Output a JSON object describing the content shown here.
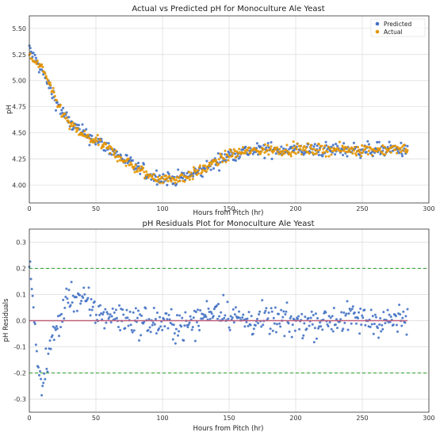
{
  "chart_data": [
    {
      "type": "scatter",
      "title": "Actual vs Predicted pH for Monoculture Ale Yeast",
      "xlabel": "Hours from Pitch (hr)",
      "ylabel": "pH",
      "xlim": [
        0,
        300
      ],
      "ylim": [
        3.83,
        5.62
      ],
      "xticks": [
        0,
        50,
        100,
        150,
        200,
        250,
        300
      ],
      "yticks": [
        4.0,
        4.25,
        4.5,
        4.75,
        5.0,
        5.25,
        5.5
      ],
      "grid": true,
      "legend_position": "top-right",
      "colors": {
        "Predicted": "#4472c4",
        "Actual": "#e69500"
      },
      "series": [
        {
          "name": "Predicted",
          "x": [
            0,
            10,
            20,
            30,
            40,
            50,
            60,
            70,
            80,
            90,
            100,
            110,
            120,
            130,
            140,
            150,
            160,
            170,
            180,
            190,
            200,
            210,
            220,
            230,
            240,
            250,
            260,
            270,
            280,
            284
          ],
          "y": [
            5.3,
            5.08,
            4.8,
            4.6,
            4.5,
            4.43,
            4.35,
            4.26,
            4.17,
            4.1,
            4.07,
            4.06,
            4.09,
            4.14,
            4.22,
            4.29,
            4.32,
            4.33,
            4.34,
            4.34,
            4.34,
            4.34,
            4.34,
            4.34,
            4.34,
            4.34,
            4.34,
            4.34,
            4.34,
            4.34
          ]
        },
        {
          "name": "Actual",
          "x": [
            0,
            10,
            20,
            30,
            40,
            50,
            60,
            70,
            80,
            90,
            100,
            110,
            120,
            130,
            140,
            150,
            160,
            170,
            180,
            190,
            200,
            210,
            220,
            230,
            240,
            250,
            260,
            270,
            280,
            284
          ],
          "y": [
            5.22,
            5.12,
            4.8,
            4.58,
            4.48,
            4.42,
            4.34,
            4.25,
            4.16,
            4.09,
            4.06,
            4.06,
            4.09,
            4.15,
            4.22,
            4.29,
            4.32,
            4.33,
            4.34,
            4.34,
            4.34,
            4.34,
            4.34,
            4.34,
            4.34,
            4.34,
            4.34,
            4.34,
            4.34,
            4.34
          ]
        }
      ]
    },
    {
      "type": "scatter",
      "title": "pH Residuals Plot for Monoculture Ale Yeast",
      "xlabel": "Hours from Pitch (hr)",
      "ylabel": "pH Residuals",
      "xlim": [
        0,
        300
      ],
      "ylim": [
        -0.35,
        0.35
      ],
      "xticks": [
        0,
        50,
        100,
        150,
        200,
        250,
        300
      ],
      "yticks": [
        -0.3,
        -0.2,
        -0.1,
        0.0,
        0.1,
        0.2,
        0.3
      ],
      "grid": true,
      "reference_lines": [
        {
          "y": 0.2,
          "style": "dashed",
          "color": "#2ca02c"
        },
        {
          "y": -0.2,
          "style": "dashed",
          "color": "#2ca02c"
        },
        {
          "y": 0.0,
          "style": "solid",
          "color": "#c0607a"
        }
      ],
      "series": [
        {
          "name": "",
          "x": [
            0,
            1,
            3,
            5,
            8,
            10,
            12,
            15,
            20,
            30,
            40,
            50,
            60,
            80,
            100,
            120,
            140,
            160,
            180,
            200,
            220,
            240,
            260,
            280,
            284
          ],
          "y": [
            0.26,
            0.15,
            0.05,
            -0.08,
            -0.22,
            -0.27,
            -0.18,
            -0.1,
            -0.04,
            0.1,
            0.08,
            0.03,
            0.02,
            0.0,
            -0.01,
            -0.02,
            0.05,
            0.0,
            0.0,
            -0.01,
            0.0,
            0.01,
            0.0,
            0.0,
            0.0
          ]
        }
      ]
    }
  ]
}
